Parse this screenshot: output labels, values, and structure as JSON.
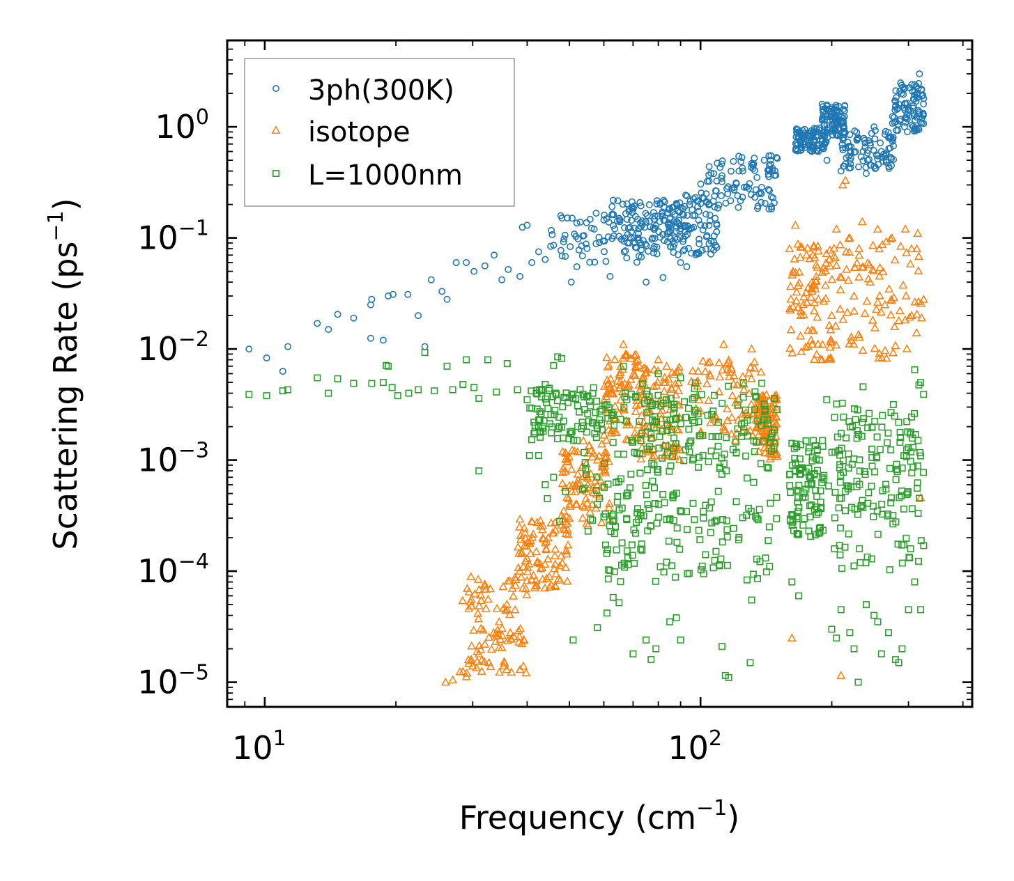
{
  "chart_data": {
    "type": "scatter",
    "title": "",
    "xlabel": "Frequency (cm",
    "xlabel_sup": "−1",
    "xlabel_end": ")",
    "ylabel": "Scattering Rate (ps",
    "ylabel_sup": "−1",
    "ylabel_end": ")",
    "xscale": "log",
    "yscale": "log",
    "xlim": [
      8.2,
      420
    ],
    "ylim": [
      6e-06,
      6
    ],
    "x_ticks": [
      {
        "value": 10,
        "base": "10",
        "exp": "1"
      },
      {
        "value": 100,
        "base": "10",
        "exp": "2"
      }
    ],
    "y_ticks": [
      {
        "value": 1,
        "base": "10",
        "exp": "0"
      },
      {
        "value": 0.1,
        "base": "10",
        "exp": "−1"
      },
      {
        "value": 0.01,
        "base": "10",
        "exp": "−2"
      },
      {
        "value": 0.001,
        "base": "10",
        "exp": "−3"
      },
      {
        "value": 0.0001,
        "base": "10",
        "exp": "−4"
      },
      {
        "value": 1e-05,
        "base": "10",
        "exp": "−5"
      }
    ],
    "legend_position": "top-left",
    "series": [
      {
        "name": "3ph(300K)",
        "marker": "circle",
        "color": "#1f77b4",
        "points": [
          [
            9.2,
            0.01
          ],
          [
            10.1,
            0.0083
          ],
          [
            11.0,
            0.0063
          ],
          [
            11.3,
            0.0105
          ],
          [
            13.2,
            0.017
          ],
          [
            14.0,
            0.015
          ],
          [
            14.7,
            0.0205
          ],
          [
            16.0,
            0.019
          ],
          [
            17.5,
            0.025
          ],
          [
            17.6,
            0.028
          ],
          [
            17.5,
            0.0125
          ],
          [
            18.7,
            0.012
          ],
          [
            19.2,
            0.03
          ],
          [
            19.7,
            0.031
          ],
          [
            21.3,
            0.031
          ],
          [
            22.5,
            0.02
          ],
          [
            23.3,
            0.0105
          ],
          [
            24.1,
            0.042
          ],
          [
            25.5,
            0.033
          ],
          [
            26.2,
            0.028
          ],
          [
            27.5,
            0.06
          ],
          [
            29.0,
            0.06
          ],
          [
            30.2,
            0.05
          ],
          [
            32.0,
            0.056
          ],
          [
            33.6,
            0.07
          ],
          [
            35.0,
            0.042
          ],
          [
            36.2,
            0.052
          ],
          [
            38.5,
            0.045
          ],
          [
            39.0,
            0.125
          ],
          [
            40.0,
            0.13
          ],
          [
            41.0,
            0.06
          ],
          [
            42.5,
            0.075
          ],
          [
            44.0,
            0.064
          ],
          [
            46.0,
            0.086
          ],
          [
            48.5,
            0.092
          ],
          [
            50.5,
            0.04
          ],
          [
            52.0,
            0.055
          ],
          [
            54.0,
            0.105
          ],
          [
            57.0,
            0.12
          ],
          [
            60.0,
            0.145
          ],
          [
            62.0,
            0.045
          ],
          [
            65.0,
            0.15
          ],
          [
            68.0,
            0.09
          ],
          [
            72.0,
            0.1
          ],
          [
            75.0,
            0.04
          ],
          [
            78.0,
            0.08
          ],
          [
            82.0,
            0.044
          ],
          [
            85.0,
            0.13
          ],
          [
            90.0,
            0.06
          ],
          [
            93.0,
            0.055
          ],
          [
            97.0,
            0.16
          ],
          [
            103.0,
            0.25
          ],
          [
            108.0,
            0.15
          ],
          [
            112.0,
            0.32
          ],
          [
            118.0,
            0.28
          ],
          [
            125.0,
            0.4
          ],
          [
            132.0,
            0.45
          ],
          [
            140.0,
            0.5
          ],
          [
            145.0,
            0.55
          ],
          [
            150.0,
            0.52
          ],
          [
            168.0,
            0.82
          ],
          [
            172.0,
            0.7
          ],
          [
            180.0,
            0.6
          ],
          [
            185.0,
            0.9
          ],
          [
            190.0,
            1.6
          ],
          [
            195.0,
            0.5
          ],
          [
            200.0,
            1.3
          ],
          [
            210.0,
            0.4
          ],
          [
            220.0,
            0.5
          ],
          [
            230.0,
            0.8
          ],
          [
            240.0,
            0.38
          ],
          [
            250.0,
            1.0
          ],
          [
            260.0,
            0.6
          ],
          [
            270.0,
            0.8
          ],
          [
            285.0,
            1.6
          ],
          [
            300.0,
            1.4
          ],
          [
            310.0,
            2.4
          ],
          [
            318.0,
            3.0
          ],
          [
            322.0,
            1.2
          ],
          [
            325.0,
            1.8
          ]
        ],
        "clusters": [
          {
            "x": [
              45,
              90
            ],
            "y": [
              0.06,
              0.17
            ]
          },
          {
            "x": [
              62,
              92
            ],
            "y": [
              0.09,
              0.22
            ]
          },
          {
            "x": [
              85,
              110
            ],
            "y": [
              0.07,
              0.25
            ]
          },
          {
            "x": [
              100,
              150
            ],
            "y": [
              0.18,
              0.55
            ]
          },
          {
            "x": [
              165,
              195
            ],
            "y": [
              0.6,
              1.0
            ]
          },
          {
            "x": [
              190,
              215
            ],
            "y": [
              0.8,
              1.6
            ]
          },
          {
            "x": [
              210,
              280
            ],
            "y": [
              0.42,
              0.95
            ]
          },
          {
            "x": [
              275,
              325
            ],
            "y": [
              0.9,
              2.5
            ]
          }
        ]
      },
      {
        "name": "isotope",
        "marker": "triangle",
        "color": "#ff7f0e",
        "points": [
          [
            26.0,
            1e-05
          ],
          [
            27.0,
            1.05e-05
          ],
          [
            28.5,
            1.25e-05
          ],
          [
            29.0,
            1.12e-05
          ],
          [
            30.0,
            1.4e-05
          ],
          [
            31.0,
            1.8e-05
          ],
          [
            32.0,
            2.2e-05
          ],
          [
            33.5,
            2.8e-05
          ],
          [
            34.5,
            3.5e-05
          ],
          [
            36.0,
            4.5e-05
          ],
          [
            37.0,
            7e-05
          ],
          [
            38.5,
            0.0001
          ],
          [
            40.0,
            0.00013
          ],
          [
            42.0,
            0.00015
          ],
          [
            44.0,
            0.00018
          ],
          [
            46.0,
            0.00022
          ],
          [
            48.0,
            0.00026
          ],
          [
            50.0,
            0.0003
          ],
          [
            52.0,
            0.0004
          ],
          [
            54.0,
            0.00055
          ],
          [
            56.0,
            0.00075
          ],
          [
            58.0,
            0.001
          ],
          [
            66.5,
            0.011
          ],
          [
            80.0,
            0.008
          ],
          [
            83.0,
            0.005
          ],
          [
            113.0,
            0.011
          ],
          [
            131.0,
            0.01
          ],
          [
            160.0,
            0.08
          ],
          [
            163.0,
            0.05
          ],
          [
            165.0,
            0.13
          ],
          [
            170.0,
            0.02
          ],
          [
            180.0,
            0.035
          ],
          [
            190.0,
            0.008
          ],
          [
            200.0,
            0.02
          ],
          [
            205.0,
            0.12
          ],
          [
            212.0,
            0.3
          ],
          [
            215.0,
            0.33
          ],
          [
            220.0,
            0.1
          ],
          [
            225.0,
            0.03
          ],
          [
            235.0,
            0.14
          ],
          [
            245.0,
            0.04
          ],
          [
            255.0,
            0.12
          ],
          [
            265.0,
            0.025
          ],
          [
            275.0,
            0.1
          ],
          [
            285.0,
            0.018
          ],
          [
            295.0,
            0.12
          ],
          [
            305.0,
            0.02
          ],
          [
            315.0,
            0.11
          ],
          [
            325.0,
            0.028
          ],
          [
            162.0,
            2.5e-05
          ],
          [
            210.0,
            1.15e-05
          ],
          [
            320.0,
            0.00046
          ]
        ],
        "clusters": [
          {
            "x": [
              28,
              40
            ],
            "y": [
              1.2e-05,
              9e-05
            ]
          },
          {
            "x": [
              38,
              50
            ],
            "y": [
              7e-05,
              0.0003
            ]
          },
          {
            "x": [
              48,
              62
            ],
            "y": [
              0.00025,
              0.0015
            ]
          },
          {
            "x": [
              60,
              75
            ],
            "y": [
              0.0015,
              0.009
            ]
          },
          {
            "x": [
              72,
              90
            ],
            "y": [
              0.001,
              0.007
            ]
          },
          {
            "x": [
              95,
              140
            ],
            "y": [
              0.0015,
              0.008
            ]
          },
          {
            "x": [
              135,
              150
            ],
            "y": [
              0.001,
              0.004
            ]
          },
          {
            "x": [
              160,
              200
            ],
            "y": [
              0.008,
              0.09
            ]
          },
          {
            "x": [
              200,
              325
            ],
            "y": [
              0.008,
              0.1
            ]
          }
        ]
      },
      {
        "name": "L=1000nm",
        "marker": "square",
        "color": "#2ca02c",
        "points": [
          [
            9.2,
            0.0039
          ],
          [
            10.1,
            0.0038
          ],
          [
            11.0,
            0.0042
          ],
          [
            11.3,
            0.0043
          ],
          [
            13.2,
            0.0055
          ],
          [
            14.0,
            0.004
          ],
          [
            14.7,
            0.0054
          ],
          [
            16.0,
            0.0049
          ],
          [
            17.6,
            0.0049
          ],
          [
            18.7,
            0.005
          ],
          [
            19.0,
            0.0071
          ],
          [
            19.2,
            0.007
          ],
          [
            19.6,
            0.0045
          ],
          [
            20.2,
            0.0038
          ],
          [
            21.4,
            0.004
          ],
          [
            22.5,
            0.0043
          ],
          [
            23.3,
            0.0093
          ],
          [
            24.5,
            0.0042
          ],
          [
            26.2,
            0.007
          ],
          [
            27.0,
            0.0043
          ],
          [
            28.5,
            0.0048
          ],
          [
            29.0,
            0.008
          ],
          [
            30.2,
            0.0045
          ],
          [
            31.0,
            0.0036
          ],
          [
            32.5,
            0.008
          ],
          [
            34.0,
            0.0041
          ],
          [
            36.0,
            0.0074
          ],
          [
            38.0,
            0.0043
          ],
          [
            40.0,
            0.0035
          ],
          [
            42.0,
            0.004
          ],
          [
            44.0,
            0.0048
          ],
          [
            46.0,
            0.0071
          ],
          [
            47.0,
            0.0085
          ],
          [
            48.0,
            0.0082
          ],
          [
            31.0,
            0.0008
          ],
          [
            40.5,
            0.0011
          ],
          [
            42.5,
            0.0011
          ],
          [
            44.0,
            0.0006
          ],
          [
            44.5,
            0.00045
          ],
          [
            46.0,
            0.0007
          ],
          [
            47.5,
            0.00028
          ],
          [
            49.0,
            0.00052
          ],
          [
            51.0,
            2.4e-05
          ],
          [
            58.0,
            3.1e-05
          ],
          [
            61.0,
            4.2e-05
          ],
          [
            63.0,
            5.8e-05
          ],
          [
            65.0,
            5.2e-05
          ],
          [
            70.0,
            1.8e-05
          ],
          [
            75.0,
            2.4e-05
          ],
          [
            77.0,
            1.6e-05
          ],
          [
            79.0,
            2e-05
          ],
          [
            85.0,
            3.5e-05
          ],
          [
            88.0,
            3.8e-05
          ],
          [
            90.0,
            2.4e-05
          ],
          [
            112.0,
            2.1e-05
          ],
          [
            114.0,
            1.15e-05
          ],
          [
            116.0,
            1.1e-05
          ],
          [
            130.0,
            1.5e-05
          ],
          [
            131.0,
            5.5e-05
          ],
          [
            162.0,
            8e-05
          ],
          [
            168.0,
            6e-05
          ],
          [
            200.0,
            3e-05
          ],
          [
            205.0,
            2.5e-05
          ],
          [
            210.0,
            4.5e-05
          ],
          [
            220.0,
            2.8e-05
          ],
          [
            225.0,
            2e-05
          ],
          [
            230.0,
            1e-05
          ],
          [
            240.0,
            5e-05
          ],
          [
            250.0,
            4e-05
          ],
          [
            255.0,
            3.5e-05
          ],
          [
            260.0,
            1.8e-05
          ],
          [
            270.0,
            2.8e-05
          ],
          [
            280.0,
            1.6e-05
          ],
          [
            285.0,
            1.5e-05
          ],
          [
            290.0,
            2e-05
          ],
          [
            300.0,
            4.5e-05
          ],
          [
            310.0,
            8e-05
          ],
          [
            320.0,
            4.5e-05
          ],
          [
            325.0,
            0.00017
          ],
          [
            66.5,
            0.007
          ],
          [
            80.0,
            0.006
          ],
          [
            90.0,
            0.0055
          ],
          [
            310.0,
            0.0065
          ],
          [
            320.0,
            0.005
          ]
        ],
        "clusters": [
          {
            "x": [
              40,
              60
            ],
            "y": [
              0.0015,
              0.0045
            ]
          },
          {
            "x": [
              52,
              90
            ],
            "y": [
              0.0002,
              0.004
            ]
          },
          {
            "x": [
              60,
              150
            ],
            "y": [
              0.00025,
              0.005
            ]
          },
          {
            "x": [
              75,
              150
            ],
            "y": [
              0.0008,
              0.004
            ]
          },
          {
            "x": [
              60,
              145
            ],
            "y": [
              8e-05,
              0.0004
            ]
          },
          {
            "x": [
              160,
              190
            ],
            "y": [
              0.0002,
              0.0015
            ]
          },
          {
            "x": [
              190,
              325
            ],
            "y": [
              0.0001,
              0.005
            ]
          },
          {
            "x": [
              200,
              325
            ],
            "y": [
              0.0003,
              0.003
            ]
          }
        ]
      }
    ]
  }
}
